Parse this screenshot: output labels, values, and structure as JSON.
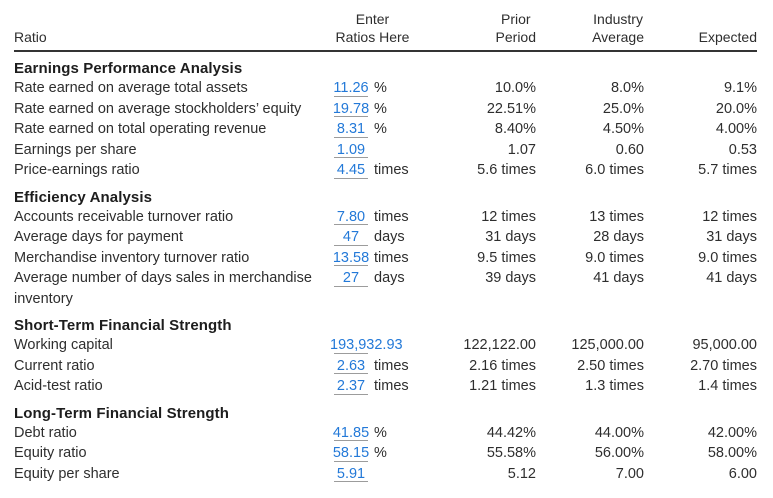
{
  "colors": {
    "entry_blue": "#2379d8",
    "underline_gray": "#9c9c9c",
    "text": "#2e2e2e"
  },
  "table": {
    "columns": {
      "ratio": "Ratio",
      "enter_line1": "Enter",
      "enter_line2": "Ratios Here",
      "prior_line1": "Prior",
      "prior_line2": "Period",
      "industry_line1": "Industry",
      "industry_line2": "Average",
      "expected": "Expected"
    },
    "sections": [
      {
        "title": "Earnings Performance Analysis",
        "rows": [
          {
            "label": "Rate earned on average total assets",
            "enter": "11.26",
            "unit": "%",
            "prior": "10.0%",
            "industry": "8.0%",
            "expected": "9.1%"
          },
          {
            "label": "Rate earned on average stockholders’ equity",
            "enter": "19.78",
            "unit": "%",
            "prior": "22.51%",
            "industry": "25.0%",
            "expected": "20.0%"
          },
          {
            "label": "Rate earned on total operating revenue",
            "enter": "8.31",
            "unit": "%",
            "prior": "8.40%",
            "industry": "4.50%",
            "expected": "4.00%"
          },
          {
            "label": "Earnings per share",
            "enter": "1.09",
            "unit": "",
            "prior": "1.07",
            "industry": "0.60",
            "expected": "0.53"
          },
          {
            "label": "Price-earnings ratio",
            "enter": "4.45",
            "unit": "times",
            "prior": "5.6 times",
            "industry": "6.0 times",
            "expected": "5.7 times"
          }
        ]
      },
      {
        "title": "Efficiency Analysis",
        "rows": [
          {
            "label": "Accounts receivable turnover ratio",
            "enter": "7.80",
            "unit": "times",
            "prior": "12 times",
            "industry": "13 times",
            "expected": "12 times"
          },
          {
            "label": "Average days for payment",
            "enter": "47",
            "unit": "days",
            "prior": "31 days",
            "industry": "28 days",
            "expected": "31 days"
          },
          {
            "label": "Merchandise inventory turnover ratio",
            "enter": "13.58",
            "unit": "times",
            "prior": "9.5 times",
            "industry": "9.0 times",
            "expected": "9.0 times"
          },
          {
            "label": "Average number of days sales in merchandise inventory",
            "enter": "27",
            "unit": "days",
            "prior": "39 days",
            "industry": "41 days",
            "expected": "41 days"
          }
        ]
      },
      {
        "title": "Short-Term Financial Strength",
        "rows": [
          {
            "label": "Working capital",
            "enter": "193,932.93",
            "unit": "",
            "prior": "122,122.00",
            "industry": "125,000.00",
            "expected": "95,000.00"
          },
          {
            "label": "Current ratio",
            "enter": "2.63",
            "unit": "times",
            "prior": "2.16 times",
            "industry": "2.50 times",
            "expected": "2.70 times"
          },
          {
            "label": "Acid-test ratio",
            "enter": "2.37",
            "unit": "times",
            "prior": "1.21 times",
            "industry": "1.3 times",
            "expected": "1.4 times"
          }
        ]
      },
      {
        "title": "Long-Term Financial Strength",
        "rows": [
          {
            "label": "Debt ratio",
            "enter": "41.85",
            "unit": "%",
            "prior": "44.42%",
            "industry": "44.00%",
            "expected": "42.00%"
          },
          {
            "label": "Equity ratio",
            "enter": "58.15",
            "unit": "%",
            "prior": "55.58%",
            "industry": "56.00%",
            "expected": "58.00%"
          },
          {
            "label": "Equity per share",
            "enter": "5.91",
            "unit": "",
            "prior": "5.12",
            "industry": "7.00",
            "expected": "6.00"
          }
        ]
      }
    ]
  }
}
